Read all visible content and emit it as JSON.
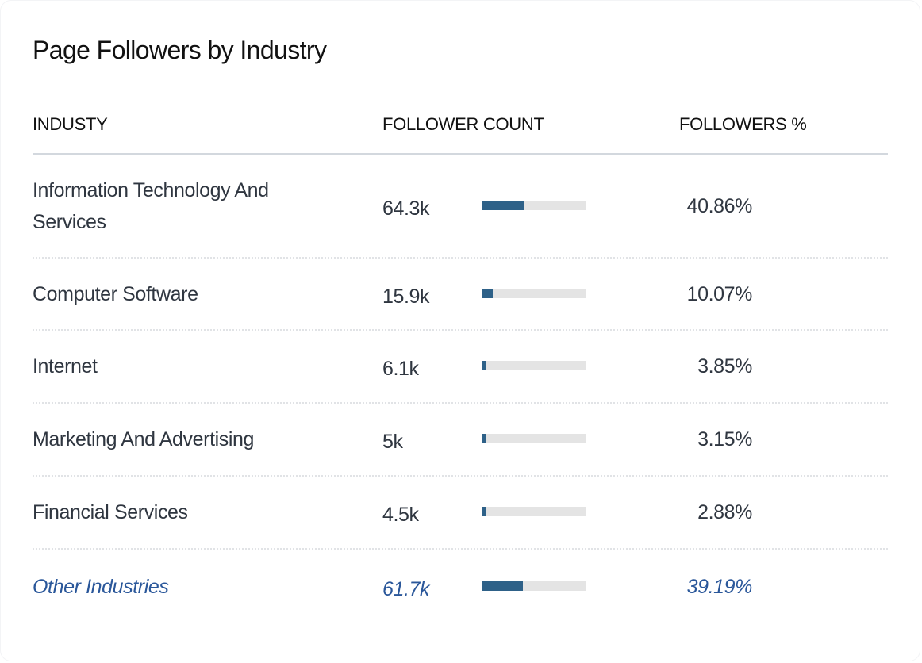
{
  "title": "Page Followers by Industry",
  "columns": {
    "industry": "INDUSTY",
    "count": "FOLLOWER COUNT",
    "pct": "FOLLOWERS %"
  },
  "rows": [
    {
      "industry": "Information Technology And Services",
      "count": "64.3k",
      "pct": "40.86%",
      "share": 40.86
    },
    {
      "industry": "Computer Software",
      "count": "15.9k",
      "pct": "10.07%",
      "share": 10.07
    },
    {
      "industry": "Internet",
      "count": "6.1k",
      "pct": "3.85%",
      "share": 3.85
    },
    {
      "industry": "Marketing And Advertising",
      "count": "5k",
      "pct": "3.15%",
      "share": 3.15
    },
    {
      "industry": "Financial Services",
      "count": "4.5k",
      "pct": "2.88%",
      "share": 2.88
    },
    {
      "industry": "Other Industries",
      "count": "61.7k",
      "pct": "39.19%",
      "share": 39.19,
      "is_other": true
    }
  ],
  "colors": {
    "bar_fill": "#2e6188",
    "bar_track": "#e4e4e4",
    "other_text": "#2a579a",
    "text": "#2f3640"
  }
}
